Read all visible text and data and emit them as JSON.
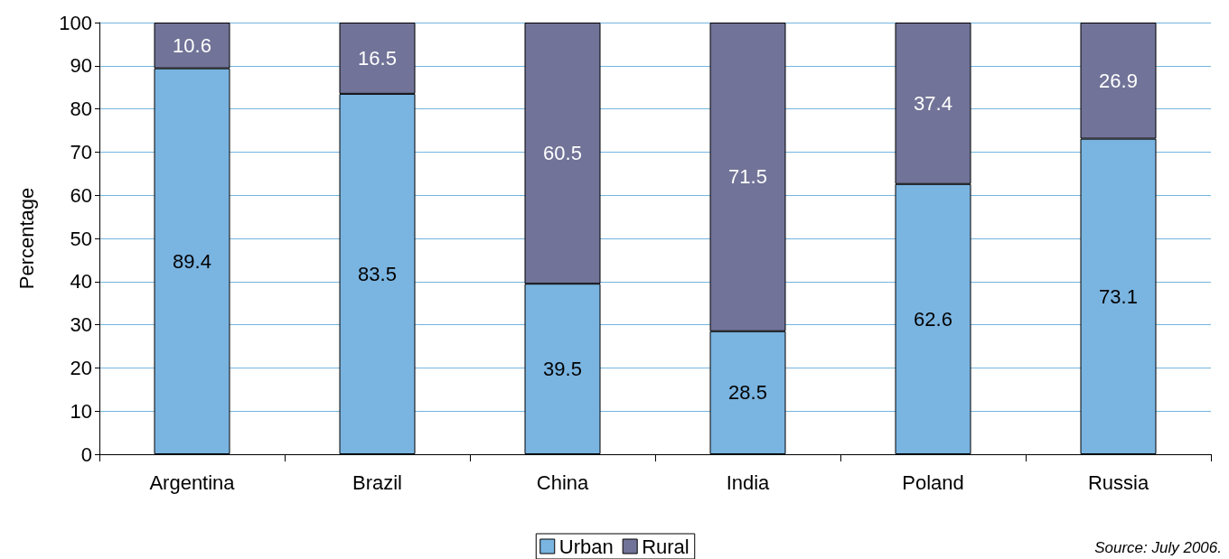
{
  "chart_data": {
    "type": "bar",
    "stacked": true,
    "ylabel": "Percentage",
    "categories": [
      "Argentina",
      "Brazil",
      "China",
      "India",
      "Poland",
      "Russia"
    ],
    "series": [
      {
        "name": "Urban",
        "color": "#7ab4e1",
        "values": [
          89.4,
          83.5,
          39.5,
          28.5,
          62.6,
          73.1
        ]
      },
      {
        "name": "Rural",
        "color": "#717398",
        "values": [
          10.6,
          16.5,
          60.5,
          71.5,
          37.4,
          26.9
        ]
      }
    ],
    "ylim": [
      0,
      100
    ],
    "yticks": [
      0,
      10,
      20,
      30,
      40,
      50,
      60,
      70,
      80,
      90,
      100
    ],
    "grid": "y",
    "legend": "bottom",
    "data_labels": true,
    "annotations": [
      "Source: July 2006."
    ]
  }
}
